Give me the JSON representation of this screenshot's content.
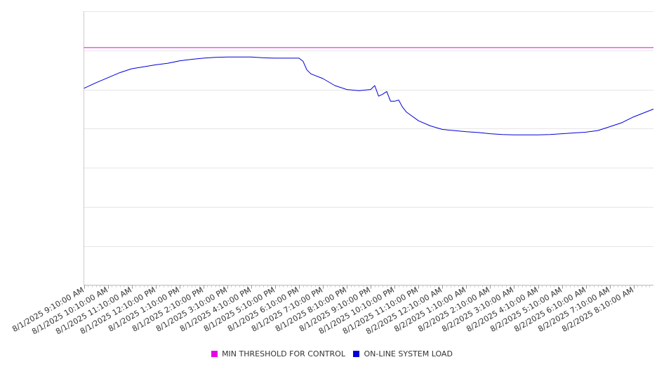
{
  "chart_data": {
    "type": "line",
    "title": "",
    "xlabel": "",
    "ylabel": "",
    "y_tick_labels_visible": false,
    "grid": "horizontal",
    "legend_position": "bottom-center",
    "x_labels": [
      "8/1/2025 9:10:00 AM",
      "8/1/2025 10:10:00 AM",
      "8/1/2025 11:10:00 AM",
      "8/1/2025 12:10:00 PM",
      "8/1/2025 1:10:00 PM",
      "8/1/2025 2:10:00 PM",
      "8/1/2025 3:10:00 PM",
      "8/1/2025 4:10:00 PM",
      "8/1/2025 5:10:00 PM",
      "8/1/2025 6:10:00 PM",
      "8/1/2025 7:10:00 PM",
      "8/1/2025 8:10:00 PM",
      "8/1/2025 9:10:00 PM",
      "8/1/2025 10:10:00 PM",
      "8/1/2025 11:10:00 PM",
      "8/2/2025 12:10:00 AM",
      "8/2/2025 1:10:00 AM",
      "8/2/2025 2:10:00 AM",
      "8/2/2025 3:10:00 AM",
      "8/2/2025 4:10:00 AM",
      "8/2/2025 5:10:00 AM",
      "8/2/2025 6:10:00 AM",
      "8/2/2025 7:10:00 AM",
      "8/2/2025 8:10:00 AM"
    ],
    "ylim": [
      0,
      7
    ],
    "gridlines": [
      1,
      2,
      3,
      4,
      5,
      6,
      7
    ],
    "series": [
      {
        "name": "MIN THRESHOLD FOR CONTROL",
        "color": "#e800e8",
        "x": [
          0,
          23.83
        ],
        "values": [
          6.07,
          6.07
        ]
      },
      {
        "name": "ON-LINE SYSTEM LOAD",
        "color": "#0000d8",
        "x": [
          0,
          0.5,
          1,
          1.5,
          2,
          2.5,
          3,
          3.5,
          4,
          4.5,
          5,
          5.5,
          6,
          6.5,
          7,
          7.5,
          8,
          8.5,
          9,
          9.17,
          9.33,
          9.5,
          10,
          10.5,
          11,
          11.5,
          12,
          12.17,
          12.33,
          12.5,
          12.67,
          12.83,
          13,
          13.17,
          13.33,
          13.5,
          14,
          14.5,
          15,
          15.5,
          16,
          16.5,
          17,
          17.5,
          18,
          18.5,
          19,
          19.5,
          20,
          20.5,
          21,
          21.5,
          22,
          22.5,
          23,
          23.5,
          23.83
        ],
        "values": [
          5.03,
          5.17,
          5.3,
          5.43,
          5.53,
          5.58,
          5.63,
          5.67,
          5.73,
          5.77,
          5.8,
          5.82,
          5.83,
          5.83,
          5.83,
          5.81,
          5.8,
          5.8,
          5.8,
          5.72,
          5.5,
          5.4,
          5.28,
          5.1,
          5.0,
          4.97,
          5.0,
          5.1,
          4.83,
          4.88,
          4.95,
          4.7,
          4.7,
          4.73,
          4.55,
          4.42,
          4.2,
          4.07,
          3.98,
          3.95,
          3.92,
          3.9,
          3.87,
          3.85,
          3.84,
          3.84,
          3.84,
          3.85,
          3.87,
          3.89,
          3.91,
          3.95,
          4.05,
          4.15,
          4.3,
          4.42,
          4.5
        ]
      }
    ]
  }
}
